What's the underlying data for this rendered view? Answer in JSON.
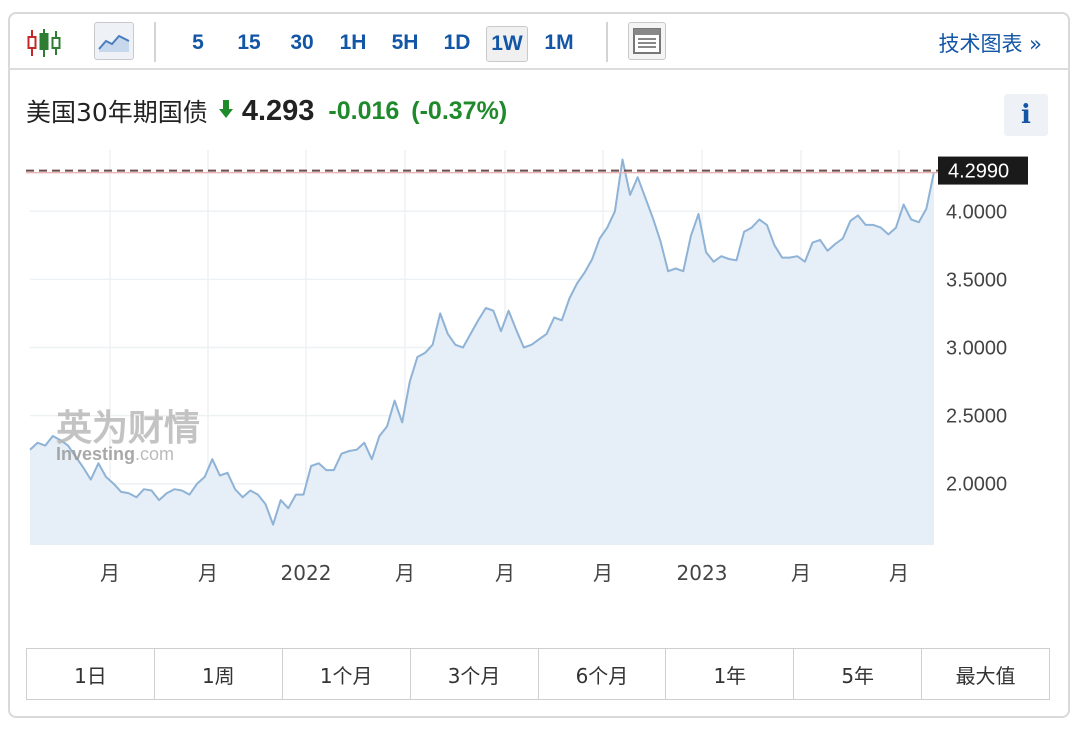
{
  "toolbar": {
    "intervals": [
      "5",
      "15",
      "30",
      "1H",
      "5H",
      "1D",
      "1W",
      "1M"
    ],
    "active_interval": "1W",
    "tech_chart_label": "技术图表 »"
  },
  "quote": {
    "name": "美国30年期国债",
    "price": "4.293",
    "change": "-0.016",
    "change_pct": "(-0.37%)",
    "direction": "down",
    "down_color": "#1f8a2b"
  },
  "info_label": "i",
  "watermark": {
    "brand_cn": "英为财情",
    "brand_en": "Investing",
    "brand_tld": ".com"
  },
  "range_buttons": [
    "1日",
    "1周",
    "1个月",
    "3个月",
    "6个月",
    "1年",
    "5年",
    "最大值"
  ],
  "chart_data": {
    "type": "area",
    "title": "",
    "xlabel": "",
    "ylabel": "",
    "ylim": [
      1.55,
      4.45
    ],
    "yticks": [
      4.0,
      3.5,
      3.0,
      2.5,
      2.0
    ],
    "ytick_labels": [
      "4.0000",
      "3.5000",
      "3.0000",
      "2.5000",
      "2.0000"
    ],
    "last_value_label": "4.2990",
    "reference_line": 4.299,
    "x_tick_labels": [
      "月",
      "月",
      "2022",
      "月",
      "月",
      "月",
      "2023",
      "月",
      "月"
    ],
    "line_color": "#8fb3d6",
    "fill_color": "#e6eef7",
    "values": [
      2.25,
      2.3,
      2.28,
      2.35,
      2.32,
      2.28,
      2.2,
      2.12,
      2.03,
      2.15,
      2.05,
      2.0,
      1.94,
      1.93,
      1.9,
      1.96,
      1.95,
      1.88,
      1.93,
      1.96,
      1.95,
      1.92,
      2.0,
      2.05,
      2.18,
      2.06,
      2.08,
      1.96,
      1.9,
      1.95,
      1.92,
      1.85,
      1.7,
      1.88,
      1.82,
      1.92,
      1.92,
      2.13,
      2.15,
      2.1,
      2.1,
      2.22,
      2.24,
      2.25,
      2.3,
      2.18,
      2.35,
      2.42,
      2.61,
      2.45,
      2.75,
      2.93,
      2.96,
      3.02,
      3.25,
      3.1,
      3.02,
      3.0,
      3.1,
      3.2,
      3.29,
      3.27,
      3.12,
      3.27,
      3.13,
      3.0,
      3.02,
      3.06,
      3.1,
      3.22,
      3.2,
      3.36,
      3.47,
      3.55,
      3.65,
      3.8,
      3.88,
      4.0,
      4.38,
      4.12,
      4.25,
      4.1,
      3.95,
      3.78,
      3.56,
      3.58,
      3.56,
      3.82,
      3.98,
      3.7,
      3.63,
      3.67,
      3.65,
      3.64,
      3.85,
      3.88,
      3.94,
      3.9,
      3.75,
      3.66,
      3.66,
      3.67,
      3.63,
      3.77,
      3.79,
      3.71,
      3.76,
      3.8,
      3.93,
      3.97,
      3.9,
      3.9,
      3.88,
      3.83,
      3.88,
      4.05,
      3.94,
      3.92,
      4.02,
      4.29
    ]
  }
}
